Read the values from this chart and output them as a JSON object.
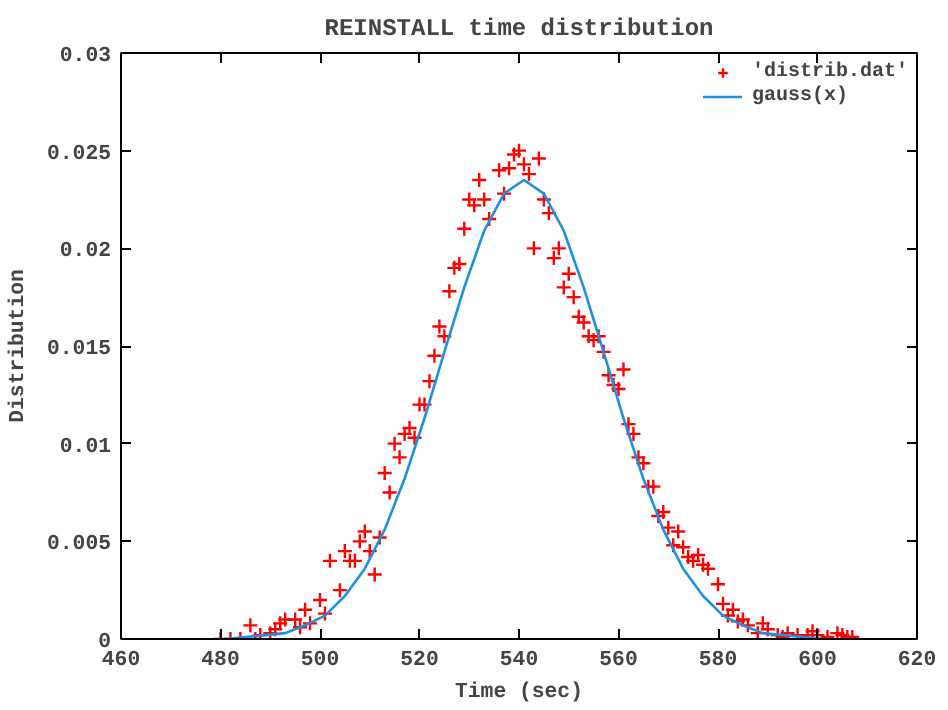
{
  "chart_data": {
    "type": "scatter",
    "title": "REINSTALL time distribution",
    "xlabel": "Time (sec)",
    "ylabel": "Distribution",
    "xlim": [
      460,
      620
    ],
    "xticks": [
      460,
      480,
      500,
      520,
      540,
      560,
      580,
      600,
      620
    ],
    "ylim": [
      0,
      0.03
    ],
    "yticks": [
      0,
      0.005,
      0.01,
      0.015,
      0.02,
      0.025,
      0.03
    ],
    "grid": false,
    "legend": "top right",
    "series": [
      {
        "name": "'distrib.dat'",
        "marker": "cross",
        "color": "#ff0000",
        "x": [
          480,
          482,
          484,
          486,
          487,
          488,
          490,
          491,
          492,
          493,
          495,
          496,
          497,
          498,
          500,
          501,
          502,
          504,
          505,
          506,
          507,
          508,
          509,
          510,
          511,
          512,
          513,
          514,
          515,
          516,
          517,
          518,
          519,
          520,
          521,
          522,
          523,
          524,
          525,
          526,
          527,
          528,
          529,
          530,
          531,
          532,
          533,
          534,
          536,
          537,
          538,
          539,
          540,
          541,
          542,
          543,
          544,
          545,
          546,
          547,
          548,
          549,
          550,
          551,
          552,
          553,
          554,
          555,
          556,
          557,
          558,
          559,
          560,
          561,
          562,
          563,
          564,
          565,
          566,
          567,
          568,
          569,
          570,
          571,
          572,
          573,
          574,
          575,
          576,
          577,
          578,
          580,
          581,
          582,
          583,
          584,
          585,
          586,
          588,
          589,
          590,
          592,
          593,
          594,
          596,
          598,
          599,
          600,
          602,
          604,
          605,
          606,
          607
        ],
        "values": [
          0,
          0,
          0,
          0.0007,
          0,
          0.0002,
          0.0003,
          0.0005,
          0.0008,
          0.001,
          0.001,
          0.0006,
          0.0015,
          0.0008,
          0.002,
          0.0013,
          0.004,
          0.0025,
          0.0045,
          0.004,
          0.004,
          0.005,
          0.0055,
          0.0045,
          0.0033,
          0.0052,
          0.0085,
          0.0075,
          0.01,
          0.0093,
          0.0105,
          0.0108,
          0.0103,
          0.012,
          0.012,
          0.0132,
          0.0145,
          0.016,
          0.0155,
          0.0178,
          0.019,
          0.0192,
          0.021,
          0.0225,
          0.0222,
          0.0235,
          0.0225,
          0.0215,
          0.024,
          0.0228,
          0.0241,
          0.0248,
          0.025,
          0.0243,
          0.0238,
          0.02,
          0.0246,
          0.0225,
          0.0218,
          0.0195,
          0.02,
          0.018,
          0.0187,
          0.0175,
          0.0165,
          0.0162,
          0.0155,
          0.0153,
          0.0155,
          0.0147,
          0.0135,
          0.013,
          0.0128,
          0.0138,
          0.011,
          0.0105,
          0.0093,
          0.009,
          0.0078,
          0.0078,
          0.0063,
          0.0065,
          0.0057,
          0.0048,
          0.0055,
          0.0047,
          0.0042,
          0.004,
          0.0043,
          0.0038,
          0.0036,
          0.0028,
          0.0018,
          0.0012,
          0.0015,
          0.0009,
          0.001,
          0.0007,
          0.0003,
          0.0008,
          0.0005,
          0.0002,
          0.0001,
          0.0003,
          0.0002,
          0.0002,
          0.0004,
          0.0002,
          0.0001,
          0.0003,
          0.0002,
          0.0001,
          0.0001
        ]
      },
      {
        "name": "gauss(x)",
        "type": "line",
        "line_style": "solid",
        "color": "#1e90e0",
        "x": [
          481,
          485,
          489,
          493,
          497,
          501,
          505,
          509,
          513,
          517,
          521,
          525,
          529,
          533,
          537,
          541,
          545,
          549,
          553,
          557,
          561,
          565,
          569,
          573,
          577,
          581,
          585,
          589,
          593,
          597,
          601
        ],
        "values": [
          0,
          0.0001,
          0.0002,
          0.0003,
          0.0007,
          0.0012,
          0.0022,
          0.0036,
          0.0056,
          0.0082,
          0.0113,
          0.0147,
          0.018,
          0.0209,
          0.0228,
          0.0235,
          0.0228,
          0.0209,
          0.018,
          0.0147,
          0.0113,
          0.0082,
          0.0056,
          0.0036,
          0.0022,
          0.0012,
          0.0007,
          0.0003,
          0.0002,
          0.0001,
          0
        ]
      }
    ]
  }
}
